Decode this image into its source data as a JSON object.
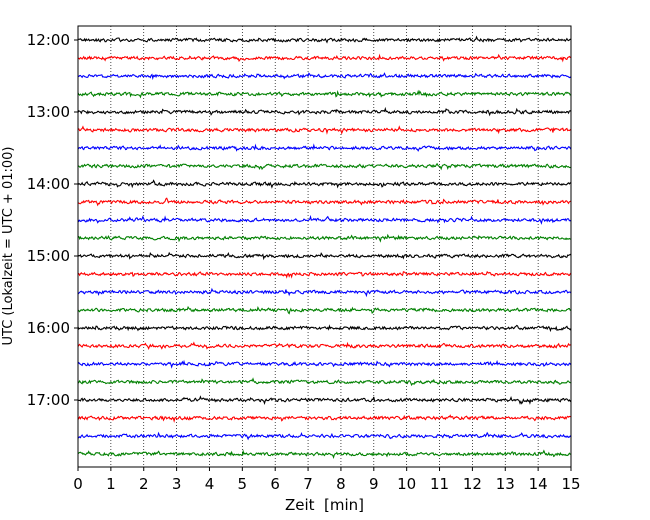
{
  "chart_data": {
    "type": "line",
    "title": "",
    "xlabel": "Zeit  [min]",
    "ylabel": "UTC (Lokalzeit = UTC + 01:00)",
    "xlim": [
      0,
      15
    ],
    "x_ticks": [
      "0",
      "1",
      "2",
      "3",
      "4",
      "5",
      "6",
      "7",
      "8",
      "9",
      "10",
      "11",
      "12",
      "13",
      "14",
      "15"
    ],
    "y_ticks": [
      "12:00",
      "13:00",
      "14:00",
      "15:00",
      "16:00",
      "17:00"
    ],
    "grid": "vertical dotted",
    "trace_interval_min": 15,
    "trace_colors": [
      "#000000",
      "#ff0000",
      "#0000ff",
      "#008000"
    ],
    "series": [
      {
        "label": "12:00",
        "color": "#000000"
      },
      {
        "label": "12:15",
        "color": "#ff0000"
      },
      {
        "label": "12:30",
        "color": "#0000ff"
      },
      {
        "label": "12:45",
        "color": "#008000"
      },
      {
        "label": "13:00",
        "color": "#000000"
      },
      {
        "label": "13:15",
        "color": "#ff0000"
      },
      {
        "label": "13:30",
        "color": "#0000ff"
      },
      {
        "label": "13:45",
        "color": "#008000"
      },
      {
        "label": "14:00",
        "color": "#000000"
      },
      {
        "label": "14:15",
        "color": "#ff0000"
      },
      {
        "label": "14:30",
        "color": "#0000ff"
      },
      {
        "label": "14:45",
        "color": "#008000"
      },
      {
        "label": "15:00",
        "color": "#000000"
      },
      {
        "label": "15:15",
        "color": "#ff0000"
      },
      {
        "label": "15:30",
        "color": "#0000ff"
      },
      {
        "label": "15:45",
        "color": "#008000"
      },
      {
        "label": "16:00",
        "color": "#000000"
      },
      {
        "label": "16:15",
        "color": "#ff0000"
      },
      {
        "label": "16:30",
        "color": "#0000ff"
      },
      {
        "label": "16:45",
        "color": "#008000"
      },
      {
        "label": "17:00",
        "color": "#000000"
      },
      {
        "label": "17:15",
        "color": "#ff0000"
      },
      {
        "label": "17:30",
        "color": "#0000ff"
      },
      {
        "label": "17:45",
        "color": "#008000"
      }
    ]
  }
}
